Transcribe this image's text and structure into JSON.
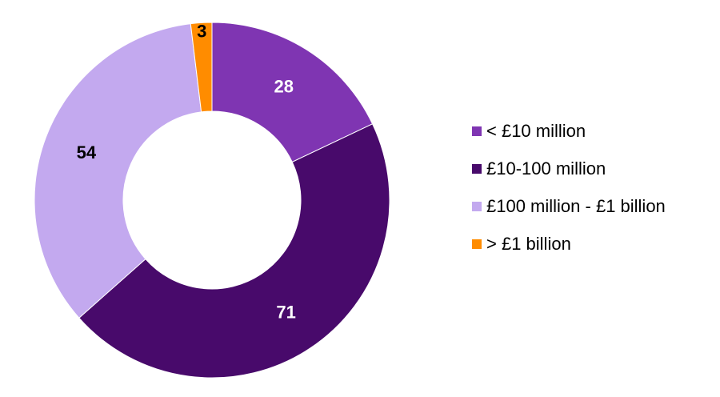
{
  "chart_data": {
    "type": "pie",
    "variant": "donut",
    "title": "",
    "legend_position": "right",
    "series": [
      {
        "name": "< £10 million",
        "value": 28,
        "label": "28",
        "color": "#7f35b2",
        "label_color": "#ffffff"
      },
      {
        "name": "£10-100 million",
        "value": 71,
        "label": "71",
        "color": "#480a6b",
        "label_color": "#ffffff"
      },
      {
        "name": "£100 million - £1 billion",
        "value": 54,
        "label": "54",
        "color": "#c3a9ef",
        "label_color": "#000000"
      },
      {
        "name": "> £1 billion",
        "value": 3,
        "label": "3",
        "color": "#ff8c00",
        "label_color": "#000000"
      }
    ]
  }
}
